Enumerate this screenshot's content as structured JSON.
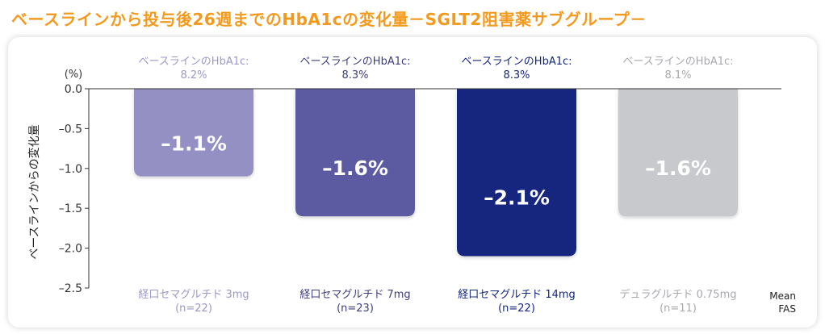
{
  "page": {
    "title": "ベースラインから投与後26週までのHbA1cの変化量－SGLT2阻害薬サブグループ－"
  },
  "chart_data": {
    "type": "bar",
    "title": "ベースラインから投与後26週までのHbA1cの変化量－SGLT2阻害薬サブグループ－",
    "ylabel": "ベースラインからの変化量",
    "yunit": "(%)",
    "ylim": [
      -2.5,
      0.0
    ],
    "yticks": [
      "0.0",
      "–0.5",
      "–1.0",
      "–1.5",
      "–2.0",
      "–2.5"
    ],
    "yticks_values": [
      0.0,
      -0.5,
      -1.0,
      -1.5,
      -2.0,
      -2.5
    ],
    "categories": [
      "経口セマグルチド 3mg",
      "経口セマグルチド 7mg",
      "経口セマグルチド 14mg",
      "デュラグルチド 0.75mg"
    ],
    "n_labels": [
      "(n=22)",
      "(n=23)",
      "(n=22)",
      "(n=11)"
    ],
    "baseline_label": "ベースラインのHbA1c:",
    "baseline_values": [
      "8.2%",
      "8.3%",
      "8.3%",
      "8.1%"
    ],
    "values": [
      -1.1,
      -1.6,
      -2.1,
      -1.6
    ],
    "value_labels": [
      "–1.1%",
      "–1.6%",
      "–2.1%",
      "–1.6%"
    ],
    "colors": [
      "#9590c4",
      "#5b5aa0",
      "#13267f",
      "#c8c9cc"
    ],
    "top_text_colors": [
      "#9c98c6",
      "#3d3c7e",
      "#13267f",
      "#a8a9ad"
    ],
    "footnote": [
      "Mean",
      "FAS"
    ]
  }
}
